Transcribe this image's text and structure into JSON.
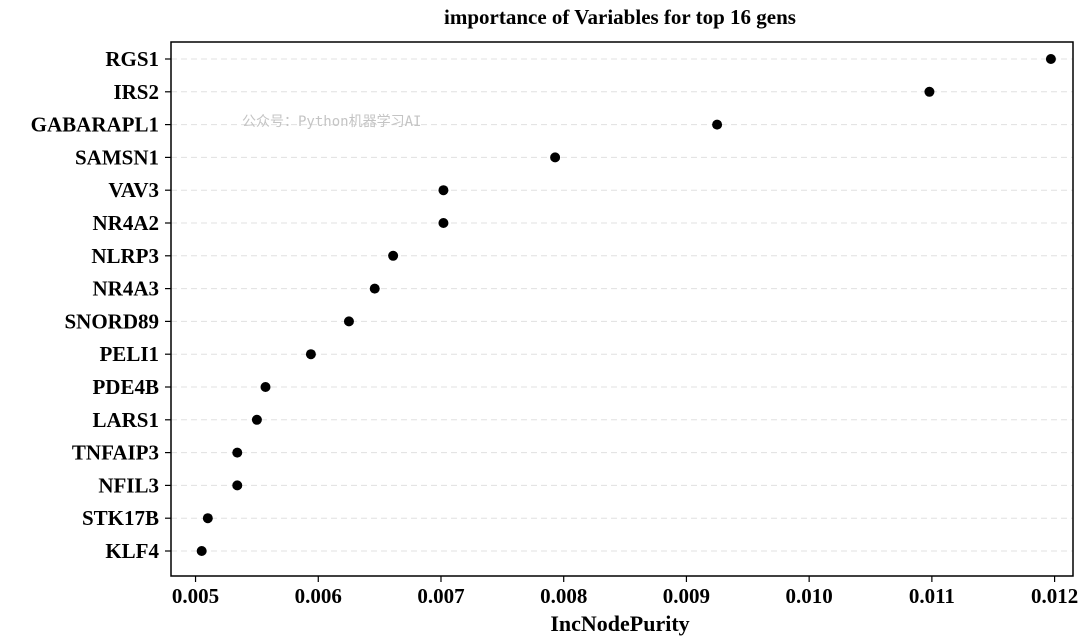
{
  "watermark": "公众号：Python机器学习AI",
  "chart_data": {
    "type": "scatter",
    "title": "importance of Variables for top 16 gens",
    "xlabel": "IncNodePurity",
    "ylabel": "",
    "xlim": [
      0.0048,
      0.01215
    ],
    "xticks": [
      "0.005",
      "0.006",
      "0.007",
      "0.008",
      "0.009",
      "0.010",
      "0.011",
      "0.012"
    ],
    "xtick_values": [
      0.005,
      0.006,
      0.007,
      0.008,
      0.009,
      0.01,
      0.011,
      0.012
    ],
    "grid": "horizontal dashed",
    "point_color": "#000000",
    "categories": [
      "RGS1",
      "IRS2",
      "GABARAPL1",
      "SAMSN1",
      "VAV3",
      "NR4A2",
      "NLRP3",
      "NR4A3",
      "SNORD89",
      "PELI1",
      "PDE4B",
      "LARS1",
      "TNFAIP3",
      "NFIL3",
      "STK17B",
      "KLF4"
    ],
    "values": [
      0.01197,
      0.01098,
      0.00925,
      0.00793,
      0.00702,
      0.00702,
      0.00661,
      0.00646,
      0.00625,
      0.00594,
      0.00557,
      0.0055,
      0.00534,
      0.00534,
      0.0051,
      0.00505
    ]
  }
}
